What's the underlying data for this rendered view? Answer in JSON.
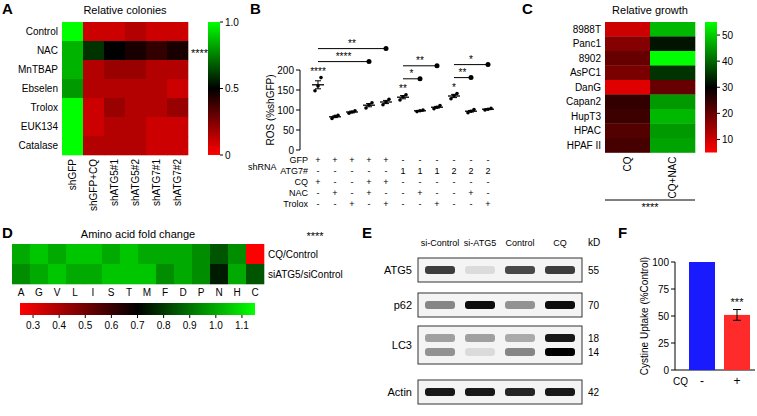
{
  "chart_data": [
    {
      "panel": "A",
      "type": "heatmap",
      "title": "Relative colonies",
      "rows": [
        "Control",
        "NAC",
        "MnTBAP",
        "Ebselen",
        "Trolox",
        "EUK134",
        "Catalase"
      ],
      "columns": [
        "shGFP",
        "shGFP+CQ",
        "shATG5#1",
        "shATG5#2",
        "shATG7#1",
        "shATG7#2"
      ],
      "cells": [
        [
          1.0,
          0.1,
          0.1,
          0.15,
          0.1,
          0.1
        ],
        [
          0.85,
          0.6,
          0.5,
          0.45,
          0.4,
          0.45
        ],
        [
          0.85,
          0.15,
          0.2,
          0.2,
          0.15,
          0.15
        ],
        [
          0.8,
          0.15,
          0.15,
          0.15,
          0.15,
          0.1
        ],
        [
          1.0,
          0.1,
          0.2,
          0.15,
          0.15,
          0.2
        ],
        [
          1.0,
          0.1,
          0.15,
          0.15,
          0.1,
          0.1
        ],
        [
          1.0,
          0.15,
          0.15,
          0.15,
          0.1,
          0.1
        ]
      ],
      "colorbar_lim": [
        0,
        1
      ],
      "colorbar_ticks": [
        0,
        0.5,
        {
          "value": 1,
          "label": "1.0"
        }
      ],
      "row_annotations": [
        null,
        "****",
        null,
        null,
        null,
        null,
        null
      ]
    },
    {
      "panel": "B",
      "type": "scatter",
      "y_label": "ROS (%shGFP)",
      "values": [
        163,
        83,
        95,
        112,
        120,
        132,
        98,
        107,
        135,
        97,
        102
      ],
      "errors": [
        10,
        2,
        2,
        4,
        4,
        4,
        1,
        2,
        4,
        2,
        1
      ],
      "points": [
        [
          148,
          160,
          181
        ],
        [
          79,
          84,
          87
        ],
        [
          92,
          95,
          98
        ],
        [
          105,
          113,
          118
        ],
        [
          113,
          120,
          127
        ],
        [
          125,
          133,
          138
        ],
        [
          96,
          98,
          100
        ],
        [
          103,
          107,
          111
        ],
        [
          128,
          136,
          141
        ],
        [
          93,
          97,
          101
        ],
        [
          100,
          102,
          104
        ]
      ],
      "ylim": [
        0,
        200
      ],
      "yticks": [
        0,
        50,
        100,
        150,
        200
      ],
      "significance": [
        "****",
        null,
        null,
        null,
        null,
        "**",
        null,
        null,
        "*",
        null,
        null
      ],
      "comparisons": [
        {
          "from": 0,
          "to": 4,
          "label": "**"
        },
        {
          "from": 0,
          "to": 3,
          "label": "****"
        },
        {
          "from": 5,
          "to": 7,
          "label": "**"
        },
        {
          "from": 5,
          "to": 6,
          "label": "*"
        },
        {
          "from": 8,
          "to": 9,
          "label": "**"
        },
        {
          "from": 8,
          "to": 10,
          "label": "*"
        }
      ],
      "table": {
        "group_label": "shRNA",
        "row_labels": [
          "GFP",
          "ATG7#",
          "CQ",
          "NAC",
          "Trolox"
        ],
        "rows": [
          [
            "+",
            "+",
            "+",
            "+",
            "+",
            "-",
            "-",
            "-",
            "-",
            "-",
            "-"
          ],
          [
            "-",
            "-",
            "-",
            "-",
            "-",
            "1",
            "1",
            "1",
            "2",
            "2",
            "2"
          ],
          [
            "+",
            "-",
            "-",
            "+",
            "+",
            "-",
            "-",
            "-",
            "-",
            "-",
            "-"
          ],
          [
            "-",
            "+",
            "-",
            "+",
            "-",
            "-",
            "+",
            "-",
            "-",
            "+",
            "-"
          ],
          [
            "-",
            "-",
            "+",
            "-",
            "+",
            "-",
            "-",
            "+",
            "-",
            "-",
            "+"
          ]
        ]
      }
    },
    {
      "panel": "C",
      "type": "heatmap",
      "title": "Relative growth",
      "rows": [
        "8988T",
        "Panc1",
        "8902",
        "AsPC1",
        "DanG",
        "Capan2",
        "HupT3",
        "HPAC",
        "HPAF II"
      ],
      "columns": [
        "CQ",
        "CQ+NAC"
      ],
      "cells": [
        [
          10,
          48
        ],
        [
          17,
          32
        ],
        [
          20,
          55
        ],
        [
          18,
          35
        ],
        [
          8,
          20
        ],
        [
          25,
          45
        ],
        [
          24,
          48
        ],
        [
          22,
          45
        ],
        [
          23,
          46
        ]
      ],
      "colorbar_lim": [
        5,
        55
      ],
      "colorbar_ticks": [
        10,
        20,
        30,
        40,
        50
      ],
      "annotation": "****"
    },
    {
      "panel": "D",
      "type": "heatmap",
      "title": "Amino acid fold change",
      "rows": [
        "CQ/Control",
        "siATG5/siControl"
      ],
      "columns": [
        "A",
        "G",
        "V",
        "L",
        "I",
        "S",
        "T",
        "M",
        "F",
        "D",
        "P",
        "N",
        "H",
        "C"
      ],
      "cells": [
        [
          1.0,
          1.05,
          1.0,
          1.05,
          1.05,
          1.0,
          1.05,
          1.0,
          1.0,
          1.0,
          0.95,
          0.85,
          0.95,
          0.25
        ],
        [
          0.95,
          1.0,
          1.05,
          1.0,
          1.0,
          1.05,
          1.05,
          1.05,
          0.95,
          1.0,
          0.95,
          0.75,
          1.0,
          0.85
        ]
      ],
      "colorbar_lim": [
        0.25,
        1.15
      ],
      "colorbar_ticks": [
        0.3,
        0.4,
        0.5,
        0.6,
        0.7,
        0.8,
        0.9,
        {
          "value": 1,
          "label": "1.0"
        },
        1.1
      ],
      "annotation": "****"
    },
    {
      "panel": "E",
      "type": "western_blot",
      "lanes": [
        "si-Control",
        "si-ATG5",
        "Control",
        "CQ"
      ],
      "unit": "kD",
      "rows": [
        {
          "label": "ATG5",
          "markers": [
            55
          ],
          "bands": [
            [
              0.75,
              0.1,
              0.7,
              0.75
            ]
          ]
        },
        {
          "label": "p62",
          "markers": [
            70
          ],
          "bands": [
            [
              0.45,
              0.95,
              0.4,
              0.95
            ]
          ]
        },
        {
          "label": "LC3",
          "markers": [
            18,
            14
          ],
          "bands": [
            [
              0.35,
              0.35,
              0.3,
              0.9
            ],
            [
              0.4,
              0.1,
              0.45,
              1.0
            ]
          ]
        },
        {
          "label": "Actin",
          "markers": [
            42
          ],
          "bands": [
            [
              0.9,
              0.9,
              0.85,
              0.9
            ]
          ]
        }
      ]
    },
    {
      "panel": "F",
      "type": "bar",
      "y_label": "Cystine Uptake (%Control)",
      "x_label": "CQ",
      "categories": [
        "-",
        "+"
      ],
      "values": [
        100,
        51
      ],
      "errors": [
        0,
        5
      ],
      "colors": [
        "#1a1aff",
        "#ff2a2a"
      ],
      "ylim": [
        0,
        100
      ],
      "yticks": [
        0,
        25,
        50,
        75,
        100
      ],
      "significance": [
        null,
        "***"
      ]
    }
  ]
}
